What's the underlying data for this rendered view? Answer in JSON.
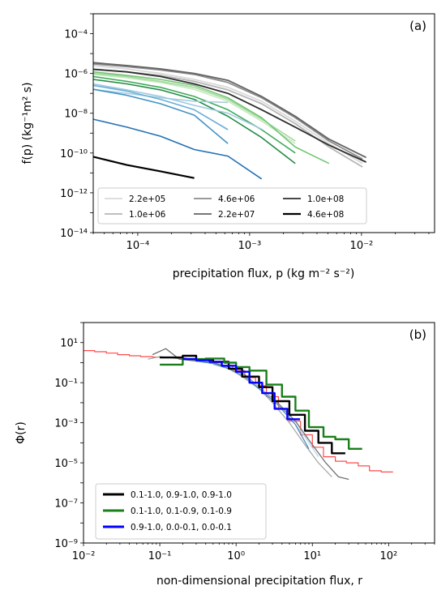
{
  "chart_data": [
    {
      "panel": "(a)",
      "type": "line",
      "xscale": "log",
      "yscale": "log",
      "xlim": [
        4e-05,
        0.045
      ],
      "ylim": [
        1e-14,
        0.001
      ],
      "xlabel": "precipitation flux, p (kg m⁻² s⁻²)",
      "ylabel": "f(p) (kg⁻¹m² s)",
      "xticks": [
        {
          "v": 0.0001,
          "t": "10⁻⁴"
        },
        {
          "v": 0.001,
          "t": "10⁻³"
        },
        {
          "v": 0.01,
          "t": "10⁻²"
        }
      ],
      "yticks": [
        {
          "v": 0.0001,
          "t": "10⁻⁴"
        },
        {
          "v": 1e-06,
          "t": "10⁻⁶"
        },
        {
          "v": 1e-08,
          "t": "10⁻⁸"
        },
        {
          "v": 1e-10,
          "t": "10⁻¹⁰"
        },
        {
          "v": 1e-12,
          "t": "10⁻¹²"
        },
        {
          "v": 1e-14,
          "t": "10⁻¹⁴"
        }
      ],
      "legend_location": "lower center",
      "series": [
        {
          "name": "2.2e+05",
          "color": "#d9d9d9",
          "width": 1.8,
          "x": [
            4e-05,
            8e-05,
            0.00016,
            0.00032,
            0.00064,
            0.00128,
            0.00256,
            0.00512,
            0.0102
          ],
          "y": [
            2.5e-06,
            1.7e-06,
            1e-06,
            5e-07,
            2e-07,
            4e-08,
            4e-09,
            3e-10,
            3e-11
          ]
        },
        {
          "name": "1.0e+06",
          "color": "#b5b5b5",
          "width": 1.8,
          "x": [
            4e-05,
            8e-05,
            0.00016,
            0.00032,
            0.00064,
            0.00128,
            0.00256,
            0.00512,
            0.0102
          ],
          "y": [
            1.7e-06,
            1.2e-06,
            8e-07,
            4e-07,
            1.5e-07,
            3e-08,
            3e-09,
            2e-10,
            2e-11
          ]
        },
        {
          "name": "4.6e+06",
          "color": "#8c8c8c",
          "width": 1.8,
          "x": [
            4e-05,
            8e-05,
            0.00016,
            0.00032,
            0.00064,
            0.00128,
            0.00256,
            0.00512,
            0.0102
          ],
          "y": [
            3e-06,
            2.2e-06,
            1.5e-06,
            9e-07,
            3.5e-07,
            6e-08,
            6e-09,
            4e-10,
            5e-11
          ]
        },
        {
          "name": "2.2e+07",
          "color": "#636363",
          "width": 1.8,
          "x": [
            4e-05,
            8e-05,
            0.00016,
            0.00032,
            0.00064,
            0.00128,
            0.00256,
            0.00512,
            0.011
          ],
          "y": [
            3.5e-06,
            2.5e-06,
            1.7e-06,
            1e-06,
            4.5e-07,
            7e-08,
            7e-09,
            5e-10,
            6e-11
          ]
        },
        {
          "name": "1.0e+08",
          "color": "#2e2e2e",
          "width": 1.8,
          "x": [
            4e-05,
            8e-05,
            0.00016,
            0.00032,
            0.00064,
            0.00128,
            0.00256,
            0.00512,
            0.011
          ],
          "y": [
            1.6e-06,
            1.2e-06,
            7e-07,
            3e-07,
            1e-07,
            1.5e-08,
            2e-09,
            2.5e-10,
            3.5e-11
          ]
        },
        {
          "name": "4.6e+08",
          "color": "#000000",
          "width": 2.2,
          "x": [
            4e-05,
            8e-05,
            0.00016,
            0.00032
          ],
          "y": [
            6.5e-11,
            2.5e-11,
            1.2e-11,
            5.5e-12
          ]
        },
        {
          "name": "",
          "color": "#c7e9c0",
          "width": 1.6,
          "x": [
            4e-05,
            8e-05,
            0.00016,
            0.00032,
            0.00064,
            0.00128,
            0.00256
          ],
          "y": [
            9e-07,
            6e-07,
            3.5e-07,
            1.6e-07,
            4e-08,
            4e-09,
            3e-10
          ]
        },
        {
          "name": "",
          "color": "#a1d99b",
          "width": 1.6,
          "x": [
            4e-05,
            8e-05,
            0.00016,
            0.00032,
            0.00064,
            0.00128,
            0.00256
          ],
          "y": [
            1e-06,
            7e-07,
            4e-07,
            2e-07,
            5e-08,
            5e-09,
            4e-10
          ]
        },
        {
          "name": "",
          "color": "#74c476",
          "width": 1.6,
          "x": [
            4e-05,
            8e-05,
            0.00016,
            0.00032,
            0.00064,
            0.00128,
            0.00256,
            0.00512
          ],
          "y": [
            1.2e-06,
            8e-07,
            5e-07,
            2.5e-07,
            6e-08,
            6e-09,
            2e-10,
            3e-11
          ]
        },
        {
          "name": "",
          "color": "#41ab5d",
          "width": 1.6,
          "x": [
            4e-05,
            8e-05,
            0.00016,
            0.00032,
            0.00064,
            0.00128,
            0.00256
          ],
          "y": [
            7e-07,
            4e-07,
            2e-07,
            7e-08,
            1.5e-08,
            1.5e-09,
            1e-10
          ]
        },
        {
          "name": "",
          "color": "#238b45",
          "width": 1.6,
          "x": [
            4e-05,
            8e-05,
            0.00016,
            0.00032,
            0.00064,
            0.00128,
            0.00256
          ],
          "y": [
            5e-07,
            3e-07,
            1.5e-07,
            5e-08,
            7e-09,
            6e-10,
            3e-11
          ]
        },
        {
          "name": "",
          "color": "#a6cee3",
          "width": 1.6,
          "x": [
            4e-05,
            8e-05,
            0.00016,
            0.00032,
            0.00064
          ],
          "y": [
            1.6e-07,
            1e-07,
            6e-08,
            4e-08,
            3.5e-08
          ]
        },
        {
          "name": "",
          "color": "#9ecae1",
          "width": 1.6,
          "x": [
            4e-05,
            8e-05,
            0.00016,
            0.00032,
            0.00064,
            0.00128
          ],
          "y": [
            3e-07,
            1.5e-07,
            7e-08,
            2.5e-08,
            1e-08,
            1.6e-09
          ]
        },
        {
          "name": "",
          "color": "#6baed6",
          "width": 1.6,
          "x": [
            4e-05,
            8e-05,
            0.00016,
            0.00032,
            0.00064
          ],
          "y": [
            2.5e-07,
            1.3e-07,
            5e-08,
            1.5e-08,
            1.5e-09
          ]
        },
        {
          "name": "",
          "color": "#4292c6",
          "width": 1.6,
          "x": [
            4e-05,
            8e-05,
            0.00016,
            0.00032,
            0.00064
          ],
          "y": [
            1.6e-07,
            8e-08,
            3e-08,
            8e-09,
            3e-10
          ]
        },
        {
          "name": "",
          "color": "#2171b5",
          "width": 1.6,
          "x": [
            4e-05,
            8e-05,
            0.00016,
            0.00032,
            0.00064,
            0.00128
          ],
          "y": [
            5e-09,
            2e-09,
            7e-10,
            1.5e-10,
            7e-11,
            5e-12
          ]
        }
      ]
    },
    {
      "panel": "(b)",
      "type": "line",
      "xscale": "log",
      "yscale": "log",
      "xlim": [
        0.01,
        400
      ],
      "ylim": [
        1e-09,
        100
      ],
      "xlabel": "non-dimensional precipitation flux, r",
      "ylabel": "Φ(r)",
      "xticks": [
        {
          "v": 0.01,
          "t": "10⁻²"
        },
        {
          "v": 0.1,
          "t": "10⁻¹"
        },
        {
          "v": 1,
          "t": "10⁰"
        },
        {
          "v": 10,
          "t": "10¹"
        },
        {
          "v": 100,
          "t": "10²"
        }
      ],
      "yticks": [
        {
          "v": 10,
          "t": "10¹"
        },
        {
          "v": 0.1,
          "t": "10⁻¹"
        },
        {
          "v": 0.001,
          "t": "10⁻³"
        },
        {
          "v": 1e-05,
          "t": "10⁻⁵"
        },
        {
          "v": 1e-07,
          "t": "10⁻⁷"
        },
        {
          "v": 1e-09,
          "t": "10⁻⁹"
        }
      ],
      "legend_location": "lower left",
      "series": [
        {
          "name": "",
          "color": "#ff4a4a",
          "width": 1.2,
          "step": true,
          "x": [
            0.01,
            0.014,
            0.02,
            0.028,
            0.04,
            0.056,
            0.08,
            0.11,
            0.16,
            0.22,
            0.32,
            0.45,
            0.64,
            0.9,
            1.3,
            1.8,
            2.5,
            3.6,
            5,
            7,
            10,
            14,
            20,
            28,
            40,
            56,
            80
          ],
          "y": [
            4,
            3.5,
            3,
            2.5,
            2.2,
            2,
            1.9,
            1.8,
            1.7,
            1.5,
            1.3,
            1,
            0.7,
            0.4,
            0.18,
            0.07,
            0.02,
            0.005,
            0.0012,
            0.00025,
            6e-05,
            2e-05,
            1.2e-05,
            1e-05,
            7e-06,
            4e-06,
            3.5e-06
          ]
        },
        {
          "name": "",
          "color": "#a9a9a9",
          "width": 1.3,
          "x": [
            0.07,
            0.1,
            0.15,
            0.2,
            0.3,
            0.5,
            0.8,
            1.2,
            2,
            3,
            5,
            8,
            12,
            18
          ],
          "y": [
            1.5,
            2,
            1.7,
            1.5,
            1.2,
            0.9,
            0.5,
            0.2,
            0.05,
            0.01,
            0.001,
            8e-05,
            1e-05,
            2e-06
          ]
        },
        {
          "name": "",
          "color": "#707070",
          "width": 1.3,
          "x": [
            0.08,
            0.12,
            0.18,
            0.3,
            0.5,
            0.8,
            1.3,
            2,
            3.5,
            6,
            10,
            15,
            22,
            30
          ],
          "y": [
            2.5,
            5,
            1.5,
            1.2,
            1,
            0.6,
            0.25,
            0.06,
            0.01,
            0.0012,
            8e-05,
            1e-05,
            2e-06,
            1.5e-06
          ]
        },
        {
          "name": "",
          "color": "#b9d7e8",
          "width": 1.3,
          "x": [
            0.5,
            0.8,
            1.3,
            2,
            3,
            5,
            8,
            12
          ],
          "y": [
            0.8,
            0.5,
            0.2,
            0.06,
            0.015,
            0.002,
            0.0002,
            2e-05
          ]
        },
        {
          "name": "",
          "color": "#4d8fc0",
          "width": 1.3,
          "x": [
            0.3,
            0.5,
            0.8,
            1.3,
            2,
            3.5,
            6,
            9
          ],
          "y": [
            1.2,
            0.9,
            0.5,
            0.2,
            0.05,
            0.008,
            0.0008,
            5e-05
          ]
        },
        {
          "name": "0.1-1.0, 0.9-1.0, 0.9-1.0",
          "color": "#000000",
          "width": 2.4,
          "step": true,
          "x": [
            0.1,
            0.2,
            0.3,
            0.5,
            0.8,
            1.2,
            2,
            3,
            5,
            8,
            12,
            18
          ],
          "y": [
            1.8,
            2.2,
            1.4,
            1.1,
            0.5,
            0.2,
            0.06,
            0.012,
            0.0025,
            0.0004,
            0.0001,
            3e-05
          ]
        },
        {
          "name": "0.1-1.0, 0.1-0.9, 0.1-0.9",
          "color": "#1a7f1a",
          "width": 2.4,
          "step": true,
          "x": [
            0.1,
            0.2,
            0.4,
            0.7,
            1,
            1.5,
            2.5,
            4,
            6,
            9,
            14,
            20,
            30
          ],
          "y": [
            0.8,
            1.5,
            1.6,
            1,
            0.6,
            0.4,
            0.08,
            0.02,
            0.004,
            0.0006,
            0.0002,
            0.00015,
            5e-05
          ]
        },
        {
          "name": "0.9-1.0, 0.0-0.1, 0.0-0.1",
          "color": "#0000ff",
          "width": 2.4,
          "step": true,
          "x": [
            0.2,
            0.3,
            0.45,
            0.65,
            1,
            1.5,
            2.2,
            3.2,
            4.7
          ],
          "y": [
            1.5,
            1.3,
            1.1,
            0.7,
            0.35,
            0.1,
            0.03,
            0.005,
            0.0015
          ]
        }
      ]
    }
  ]
}
